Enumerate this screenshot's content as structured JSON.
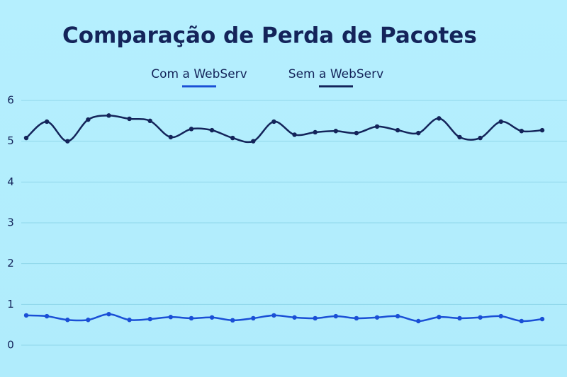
{
  "chart_data": {
    "type": "line",
    "title": "Comparação de Perda de Pacotes",
    "categories": [
      null,
      null,
      null,
      null,
      null,
      null,
      null,
      null,
      null,
      null,
      null,
      null,
      null,
      null,
      null,
      null,
      null,
      null,
      null,
      null,
      null,
      null,
      null,
      null,
      null,
      null
    ],
    "series": [
      {
        "name": "Com a WebServ",
        "color": "#1a4fd6",
        "values": [
          0.73,
          0.71,
          0.62,
          0.62,
          0.76,
          0.62,
          0.64,
          0.69,
          0.66,
          0.68,
          0.61,
          0.66,
          0.73,
          0.68,
          0.66,
          0.71,
          0.66,
          0.68,
          0.71,
          0.59,
          0.69,
          0.66,
          0.68,
          0.71,
          0.59,
          0.64
        ]
      },
      {
        "name": "Sem a WebServ",
        "color": "#14245a",
        "values": [
          5.08,
          5.48,
          5.0,
          5.53,
          5.63,
          5.55,
          5.5,
          5.1,
          5.3,
          5.27,
          5.08,
          5.0,
          5.48,
          5.16,
          5.22,
          5.25,
          5.2,
          5.36,
          5.27,
          5.2,
          5.56,
          5.1,
          5.08,
          5.48,
          5.25,
          5.27
        ]
      }
    ],
    "ylim": [
      0,
      6
    ],
    "yticks": [
      0,
      1,
      2,
      3,
      4,
      5,
      6
    ],
    "grid": true
  }
}
